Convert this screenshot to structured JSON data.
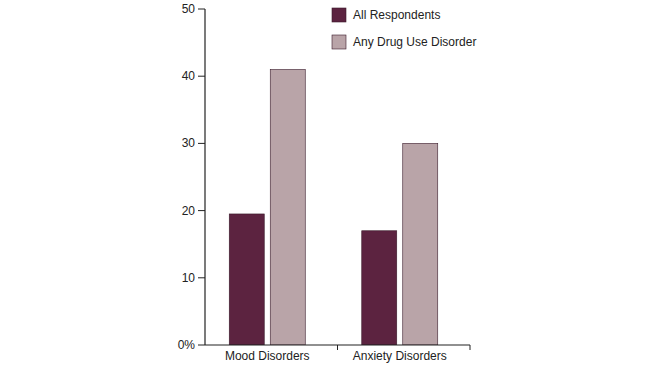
{
  "chart_data": {
    "type": "bar",
    "categories": [
      "Mood Disorders",
      "Anxiety Disorders"
    ],
    "series": [
      {
        "name": "All Respondents",
        "color": "#5c2340",
        "values": [
          19.5,
          17
        ]
      },
      {
        "name": "Any Drug Use Disorder",
        "color": "#b9a4a8",
        "values": [
          41,
          30
        ]
      }
    ],
    "ylim": [
      0,
      50
    ],
    "yticks": [
      {
        "value": 0,
        "label": "0%"
      },
      10,
      20,
      30,
      40,
      50
    ],
    "grid": false,
    "legend": "top-right"
  }
}
